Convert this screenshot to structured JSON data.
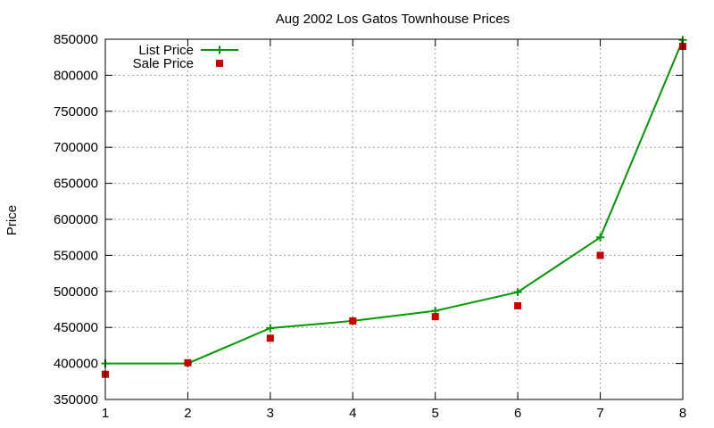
{
  "chart_data": {
    "type": "line",
    "title": "Aug 2002 Los Gatos Townhouse Prices",
    "xlabel": "",
    "ylabel": "Price",
    "x": [
      1,
      2,
      3,
      4,
      5,
      6,
      7,
      8
    ],
    "xlim": [
      1,
      8
    ],
    "ylim": [
      350000,
      850000
    ],
    "xticks": [
      "1",
      "2",
      "3",
      "4",
      "5",
      "6",
      "7",
      "8"
    ],
    "yticks": [
      "350000",
      "400000",
      "450000",
      "500000",
      "550000",
      "600000",
      "650000",
      "700000",
      "750000",
      "800000",
      "850000"
    ],
    "grid": true,
    "legend_position": "top-left",
    "series": [
      {
        "name": "List Price",
        "style": "line-plus",
        "color": "#009900",
        "values": [
          400000,
          400000,
          449000,
          459000,
          473000,
          499000,
          575000,
          849000
        ]
      },
      {
        "name": "Sale Price",
        "style": "square-points",
        "color": "#cc0000",
        "values": [
          385000,
          401000,
          435000,
          459000,
          465000,
          480000,
          550000,
          840000
        ]
      }
    ]
  }
}
